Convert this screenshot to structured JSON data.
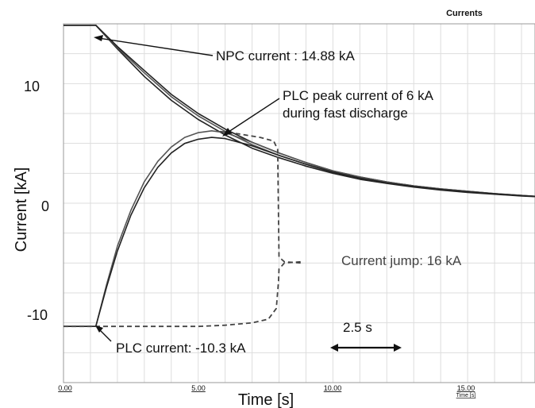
{
  "chart_data": {
    "type": "line",
    "title": "Currents",
    "xlabel": "Time [s]",
    "ylabel": "Current  [kA]",
    "x_unit_label": "Time [s]",
    "xlim": [
      0,
      17.5
    ],
    "ylim": [
      -15,
      15
    ],
    "x_ticks": [
      "0.00",
      "5.00",
      "10.00",
      "15.00"
    ],
    "x_tick_values": [
      0,
      5,
      10,
      15
    ],
    "y_ticks": [
      "10",
      "0",
      "-10"
    ],
    "y_tick_values": [
      10,
      0,
      -10
    ],
    "grid": true,
    "series": [
      {
        "values": [
          [
            0,
            14.88
          ],
          [
            1.2,
            14.88
          ],
          [
            2,
            12.9
          ],
          [
            3,
            10.6
          ],
          [
            4,
            8.6
          ],
          [
            5,
            7.0
          ],
          [
            6,
            5.7
          ],
          [
            7,
            4.6
          ],
          [
            8,
            3.8
          ],
          [
            9,
            3.1
          ],
          [
            10,
            2.5
          ],
          [
            11,
            2.0
          ],
          [
            12,
            1.65
          ],
          [
            13,
            1.35
          ],
          [
            14,
            1.1
          ],
          [
            15,
            0.9
          ],
          [
            16,
            0.75
          ],
          [
            17,
            0.6
          ],
          [
            17.5,
            0.55
          ]
        ]
      },
      {
        "values": [
          [
            0,
            14.88
          ],
          [
            1.2,
            14.88
          ],
          [
            2,
            13.0
          ],
          [
            3,
            10.9
          ],
          [
            4,
            8.9
          ],
          [
            5,
            7.3
          ],
          [
            6,
            6.0
          ],
          [
            7,
            4.9
          ],
          [
            8,
            4.0
          ],
          [
            9,
            3.25
          ],
          [
            10,
            2.6
          ],
          [
            11,
            2.1
          ],
          [
            12,
            1.7
          ],
          [
            13,
            1.4
          ],
          [
            14,
            1.15
          ],
          [
            15,
            0.95
          ],
          [
            16,
            0.78
          ],
          [
            17,
            0.63
          ],
          [
            17.5,
            0.57
          ]
        ]
      },
      {
        "values": [
          [
            0,
            14.88
          ],
          [
            1.2,
            14.88
          ],
          [
            2,
            13.1
          ],
          [
            3,
            11.1
          ],
          [
            4,
            9.1
          ],
          [
            5,
            7.5
          ],
          [
            6,
            6.2
          ],
          [
            7,
            5.1
          ],
          [
            8,
            4.2
          ],
          [
            9,
            3.4
          ],
          [
            10,
            2.7
          ],
          [
            11,
            2.2
          ],
          [
            12,
            1.78
          ],
          [
            13,
            1.45
          ],
          [
            14,
            1.2
          ],
          [
            15,
            1.0
          ],
          [
            16,
            0.8
          ],
          [
            17,
            0.65
          ],
          [
            17.5,
            0.58
          ]
        ]
      },
      {
        "values": [
          [
            0,
            -10.3
          ],
          [
            1.2,
            -10.3
          ],
          [
            1.6,
            -6.8
          ],
          [
            2,
            -3.6
          ],
          [
            2.5,
            -0.6
          ],
          [
            3,
            1.8
          ],
          [
            3.5,
            3.5
          ],
          [
            4,
            4.7
          ],
          [
            4.5,
            5.5
          ],
          [
            5,
            5.9
          ],
          [
            5.5,
            6.05
          ],
          [
            6,
            5.9
          ],
          [
            7,
            5.1
          ],
          [
            8,
            4.2
          ],
          [
            9,
            3.4
          ],
          [
            10,
            2.7
          ],
          [
            11,
            2.2
          ],
          [
            12,
            1.78
          ],
          [
            13,
            1.45
          ],
          [
            14,
            1.2
          ],
          [
            15,
            1.0
          ],
          [
            16,
            0.8
          ],
          [
            17,
            0.65
          ],
          [
            17.5,
            0.58
          ]
        ]
      },
      {
        "values": [
          [
            0,
            -10.3
          ],
          [
            1.2,
            -10.3
          ],
          [
            1.6,
            -7.0
          ],
          [
            2,
            -4.0
          ],
          [
            2.5,
            -1.0
          ],
          [
            3,
            1.3
          ],
          [
            3.5,
            3.0
          ],
          [
            4,
            4.2
          ],
          [
            4.5,
            5.0
          ],
          [
            5,
            5.35
          ],
          [
            5.5,
            5.5
          ],
          [
            6,
            5.4
          ],
          [
            7,
            4.8
          ],
          [
            8,
            4.0
          ],
          [
            9,
            3.25
          ],
          [
            10,
            2.6
          ],
          [
            11,
            2.1
          ],
          [
            12,
            1.7
          ],
          [
            13,
            1.4
          ],
          [
            14,
            1.15
          ],
          [
            15,
            0.95
          ],
          [
            16,
            0.78
          ],
          [
            17,
            0.63
          ],
          [
            17.5,
            0.57
          ]
        ]
      },
      {
        "style": "dashed",
        "values": [
          [
            0,
            -10.3
          ],
          [
            1.2,
            -10.3
          ],
          [
            3,
            -10.3
          ],
          [
            5,
            -10.3
          ],
          [
            6,
            -10.2
          ],
          [
            7,
            -10.0
          ],
          [
            7.6,
            -9.7
          ],
          [
            7.9,
            -8.8
          ],
          [
            7.98,
            -6.5
          ],
          [
            8,
            -5.5
          ],
          [
            8.2,
            -5.0
          ],
          [
            8.8,
            -4.9
          ]
        ]
      },
      {
        "style": "dashed",
        "values": [
          [
            5.8,
            6.0
          ],
          [
            6.5,
            5.8
          ],
          [
            7.3,
            5.5
          ],
          [
            7.8,
            5.2
          ],
          [
            7.95,
            4.5
          ],
          [
            8,
            -4.5
          ],
          [
            8.2,
            -4.9
          ],
          [
            8.8,
            -5.0
          ]
        ]
      }
    ],
    "annotations": {
      "npc": "NPC current : 14.88 kA",
      "plc_peak_line1": "PLC peak current of 6 kA",
      "plc_peak_line2": "during fast discharge",
      "jump": "Current jump: 16 kA",
      "plc": "PLC current: -10.3 kA",
      "duration": "2.5 s"
    }
  },
  "colors": {
    "line": "#222222",
    "line_light": "#555555",
    "dashed": "#444444",
    "grid": "#dddddd"
  }
}
